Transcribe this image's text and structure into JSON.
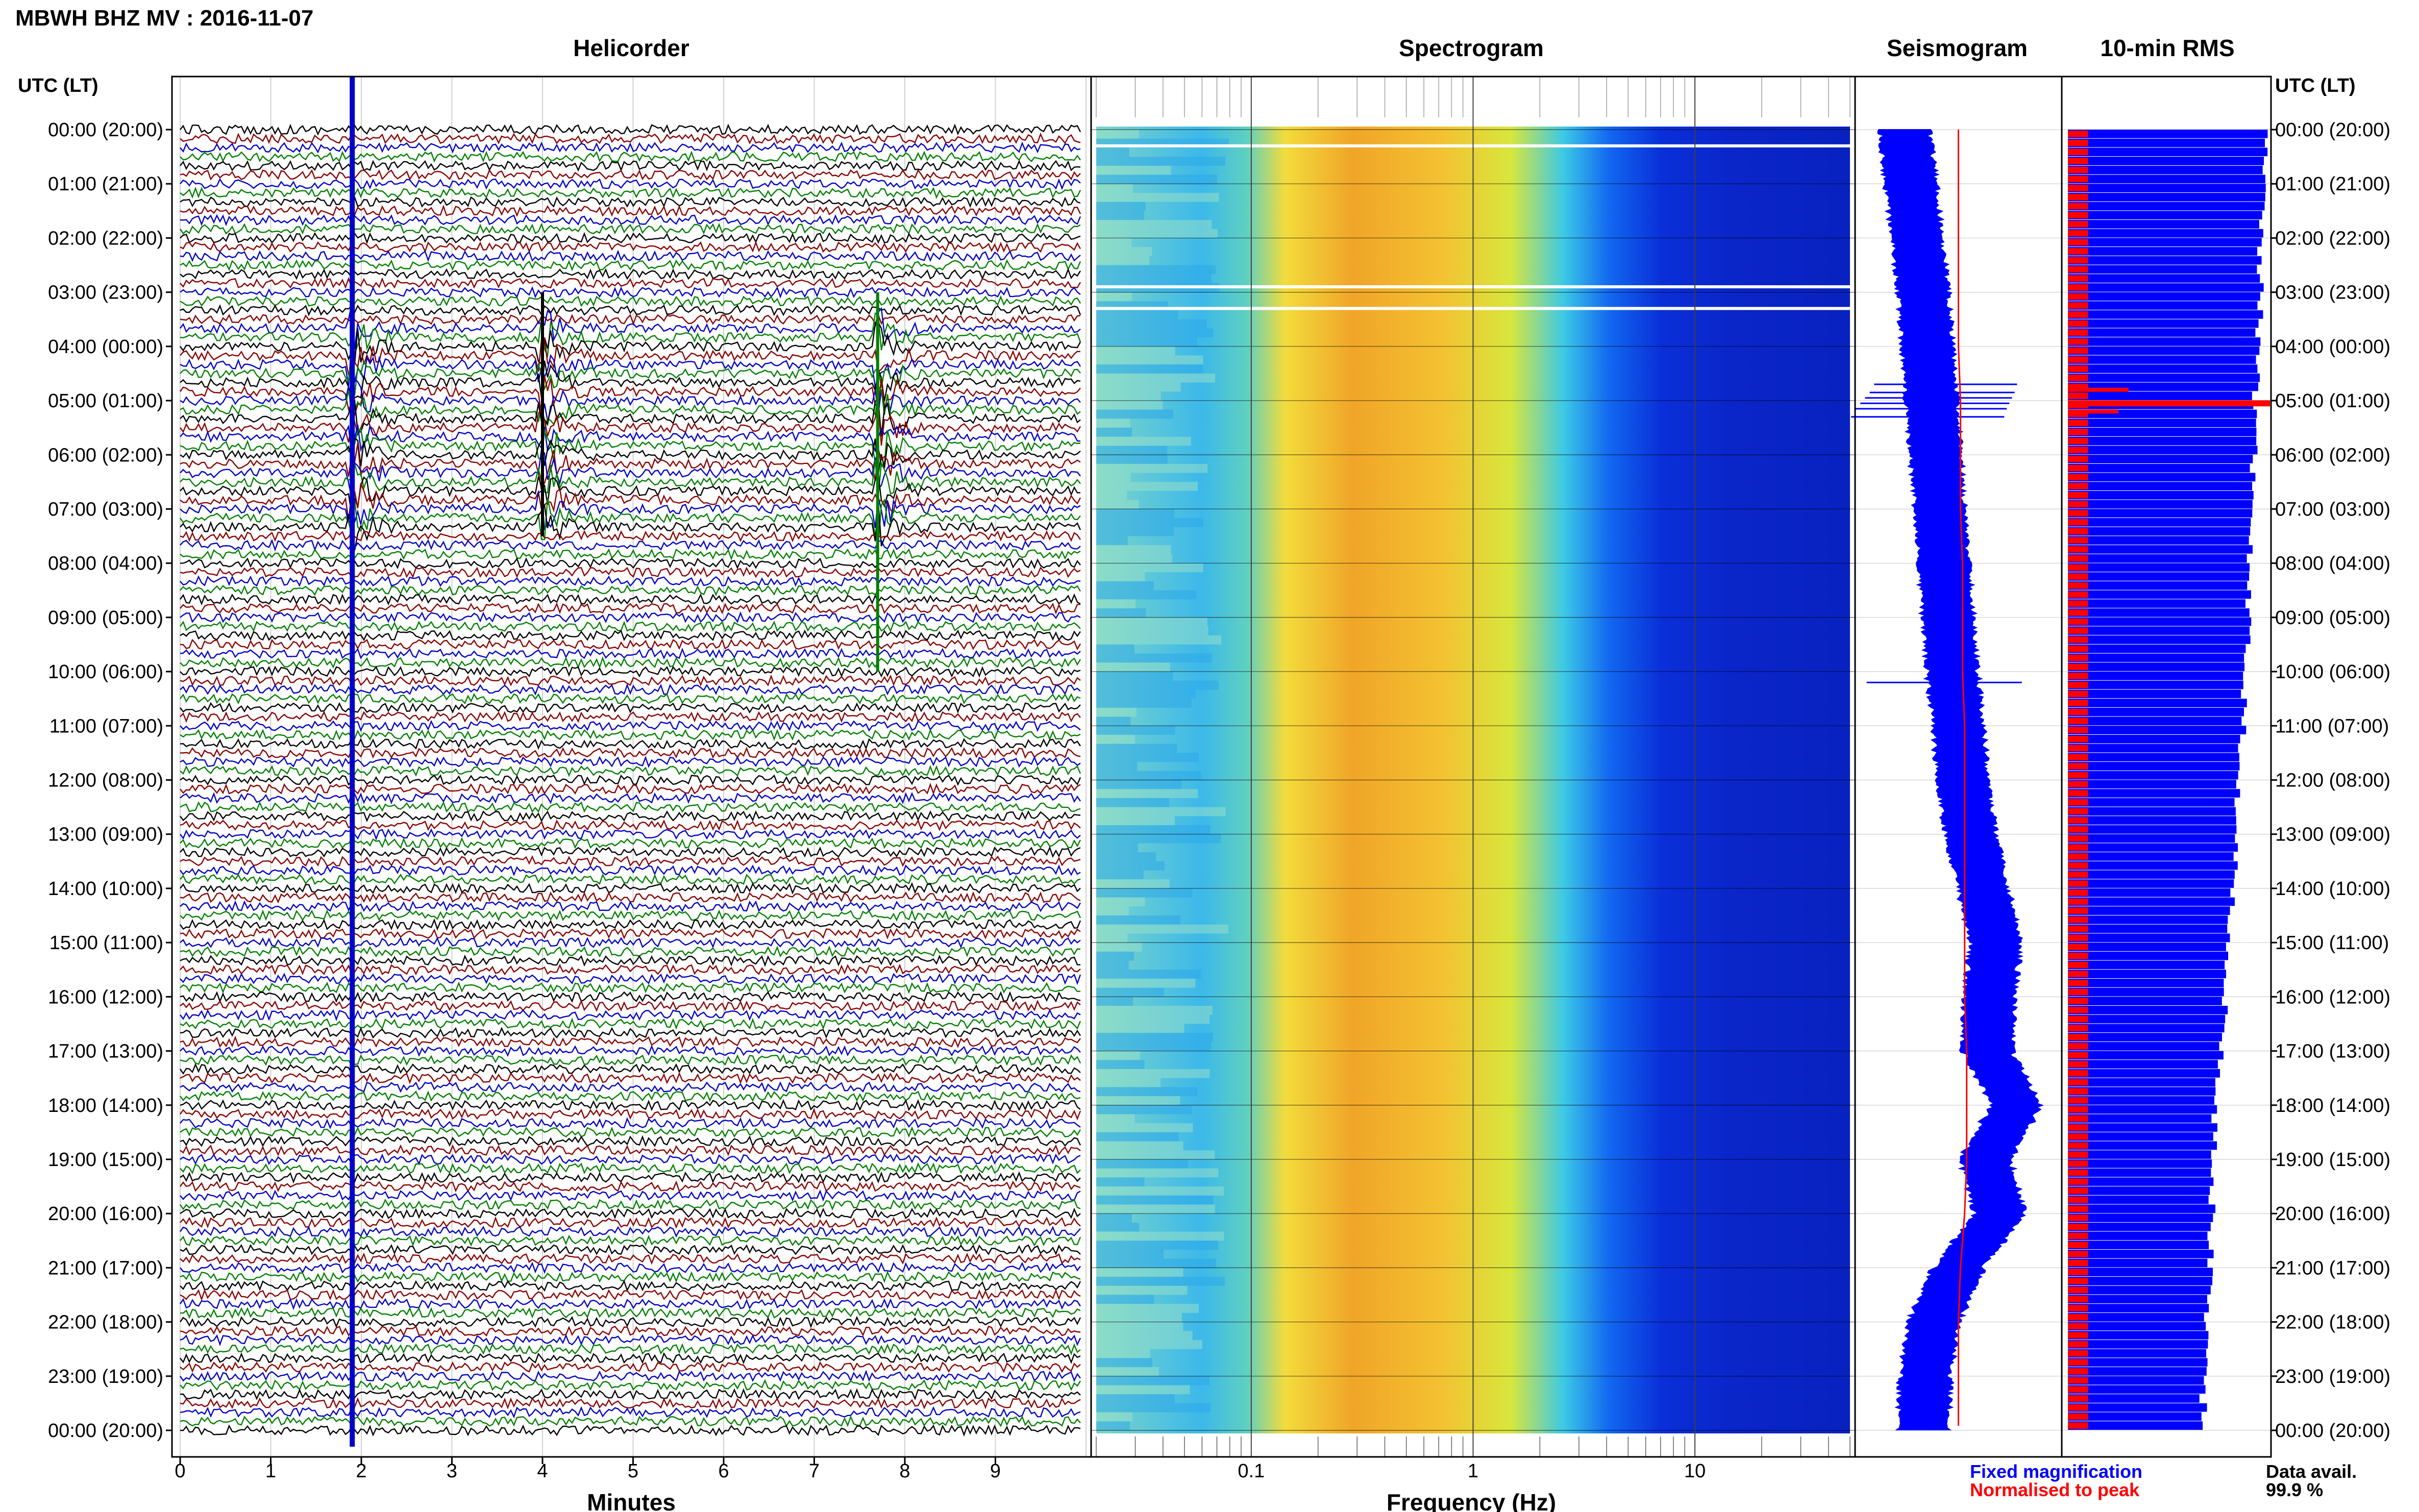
{
  "header": {
    "title": "MBWH BHZ MV : 2016-11-07"
  },
  "panels": {
    "helicorder_title": "Helicorder",
    "spectrogram_title": "Spectrogram",
    "seismogram_title": "Seismogram",
    "rms_title": "10-min RMS"
  },
  "axis": {
    "time_label_left": "UTC (LT)",
    "time_label_right": "UTC (LT)",
    "minutes_label": "Minutes",
    "frequency_label": "Frequency (Hz)"
  },
  "legend": {
    "fixed": "Fixed magnification",
    "normalised": "Normalised to peak",
    "data_avail_label": "Data avail.",
    "data_avail_value": "99.9 %"
  },
  "colors": {
    "trace_cycle": [
      "#000000",
      "#8b0000",
      "#0000c8",
      "#008000"
    ],
    "fixed": "#0000ff",
    "normalised": "#ff0000"
  },
  "chart_data": [
    {
      "type": "line",
      "name": "helicorder",
      "title": "Helicorder",
      "xlabel": "Minutes",
      "x_ticks": [
        "0",
        "1",
        "2",
        "3",
        "4",
        "5",
        "6",
        "7",
        "8",
        "9"
      ],
      "xlim": [
        0,
        10
      ],
      "y_ticks": [
        "00:00 (20:00)",
        "01:00 (21:00)",
        "02:00 (22:00)",
        "03:00 (23:00)",
        "04:00 (00:00)",
        "05:00 (01:00)",
        "06:00 (02:00)",
        "07:00 (03:00)",
        "08:00 (04:00)",
        "09:00 (05:00)",
        "10:00 (06:00)",
        "11:00 (07:00)",
        "12:00 (08:00)",
        "13:00 (09:00)",
        "14:00 (10:00)",
        "15:00 (11:00)",
        "16:00 (12:00)",
        "17:00 (13:00)",
        "18:00 (14:00)",
        "19:00 (15:00)",
        "20:00 (16:00)",
        "21:00 (17:00)",
        "22:00 (18:00)",
        "23:00 (19:00)",
        "00:00 (20:00)"
      ],
      "rows_per_hour": 6,
      "events_minutes": [
        1.9,
        4.0,
        7.7
      ]
    },
    {
      "type": "heatmap",
      "name": "spectrogram",
      "title": "Spectrogram",
      "xlabel": "Frequency (Hz)",
      "x_scale": "log",
      "xlim": [
        0.02,
        50
      ],
      "x_ticks": [
        {
          "v": 0.1,
          "label": "0.1"
        },
        {
          "v": 1,
          "label": "1"
        },
        {
          "v": 10,
          "label": "10"
        }
      ],
      "peak_band_hz": [
        0.2,
        0.5
      ],
      "white_gap_hours": [
        0.3,
        2.9,
        3.3
      ]
    },
    {
      "type": "area",
      "name": "seismogram",
      "title": "Seismogram",
      "hours": [
        0,
        1,
        2,
        3,
        4,
        5,
        6,
        7,
        8,
        9,
        10,
        11,
        12,
        13,
        14,
        15,
        16,
        17,
        18,
        19,
        20,
        21,
        22,
        23,
        24
      ],
      "center": [
        0.24,
        0.27,
        0.3,
        0.33,
        0.35,
        0.37,
        0.39,
        0.41,
        0.43,
        0.45,
        0.47,
        0.5,
        0.52,
        0.56,
        0.62,
        0.68,
        0.65,
        0.64,
        0.78,
        0.63,
        0.7,
        0.5,
        0.38,
        0.34,
        0.33
      ],
      "normalised_line": [
        0.5,
        0.5,
        0.5,
        0.5,
        0.5,
        0.51,
        0.51,
        0.51,
        0.52,
        0.52,
        0.52,
        0.53,
        0.53,
        0.53,
        0.53,
        0.53,
        0.53,
        0.54,
        0.54,
        0.54,
        0.53,
        0.51,
        0.5,
        0.5,
        0.5
      ]
    },
    {
      "type": "bar",
      "name": "rms",
      "title": "10-min RMS",
      "orientation": "horizontal",
      "bins_per_hour": 6,
      "profile_hours": [
        0,
        1,
        2,
        3,
        4,
        5,
        6,
        7,
        8,
        9,
        10,
        11,
        12,
        13,
        14,
        15,
        16,
        17,
        18,
        19,
        20,
        21,
        22,
        23,
        24
      ],
      "fixed_level": [
        1.0,
        0.98,
        0.97,
        0.97,
        0.96,
        0.95,
        0.94,
        0.93,
        0.92,
        0.91,
        0.9,
        0.89,
        0.87,
        0.85,
        0.84,
        0.82,
        0.8,
        0.78,
        0.75,
        0.74,
        0.73,
        0.72,
        0.71,
        0.69,
        0.69
      ],
      "normalised_level": [
        0.2,
        0.2,
        0.2,
        0.2,
        0.2,
        0.2,
        0.2,
        0.2,
        0.2,
        0.2,
        0.2,
        0.2,
        0.2,
        0.2,
        0.2,
        0.2,
        0.2,
        0.2,
        0.2,
        0.2,
        0.2,
        0.2,
        0.2,
        0.2,
        0.2
      ],
      "peak_hour": 5.05
    }
  ]
}
